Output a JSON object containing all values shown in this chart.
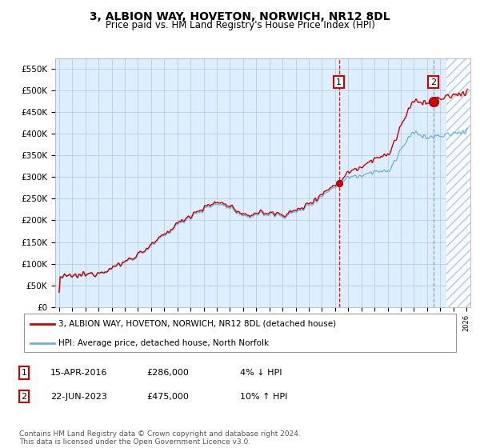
{
  "title": "3, ALBION WAY, HOVETON, NORWICH, NR12 8DL",
  "subtitle": "Price paid vs. HM Land Registry's House Price Index (HPI)",
  "ylim": [
    0,
    575000
  ],
  "yticks": [
    0,
    50000,
    100000,
    150000,
    200000,
    250000,
    300000,
    350000,
    400000,
    450000,
    500000,
    550000
  ],
  "ytick_labels": [
    "£0",
    "£50K",
    "£100K",
    "£150K",
    "£200K",
    "£250K",
    "£300K",
    "£350K",
    "£400K",
    "£450K",
    "£500K",
    "£550K"
  ],
  "hpi_color": "#6ab0de",
  "price_color": "#cc0000",
  "marker_color": "#cc0000",
  "sale1_year": 2016.29,
  "sale1_price": 286000,
  "sale2_year": 2023.47,
  "sale2_price": 475000,
  "legend_line1": "3, ALBION WAY, HOVETON, NORWICH, NR12 8DL (detached house)",
  "legend_line2": "HPI: Average price, detached house, North Norfolk",
  "note1_date": "15-APR-2016",
  "note1_price": "£286,000",
  "note1_hpi": "4% ↓ HPI",
  "note2_date": "22-JUN-2023",
  "note2_price": "£475,000",
  "note2_hpi": "10% ↑ HPI",
  "footer": "Contains HM Land Registry data © Crown copyright and database right 2024.\nThis data is licensed under the Open Government Licence v3.0.",
  "bg_color": "#ffffff",
  "plot_bg_color": "#ddeeff",
  "grid_color": "#bbccdd",
  "hpi_anchors_years": [
    1995,
    1996,
    1997,
    1998,
    1999,
    2000,
    2001,
    2002,
    2003,
    2004,
    2005,
    2006,
    2007,
    2008,
    2009,
    2010,
    2011,
    2012,
    2013,
    2014,
    2015,
    2016,
    2017,
    2018,
    2019,
    2020,
    2021,
    2022,
    2023,
    2024,
    2025,
    2026
  ],
  "hpi_anchors_prices": [
    68000,
    70000,
    73000,
    78000,
    88000,
    103000,
    120000,
    140000,
    165000,
    190000,
    210000,
    225000,
    238000,
    230000,
    205000,
    215000,
    213000,
    210000,
    218000,
    235000,
    258000,
    278000,
    300000,
    305000,
    315000,
    310000,
    365000,
    405000,
    390000,
    395000,
    400000,
    408000
  ]
}
